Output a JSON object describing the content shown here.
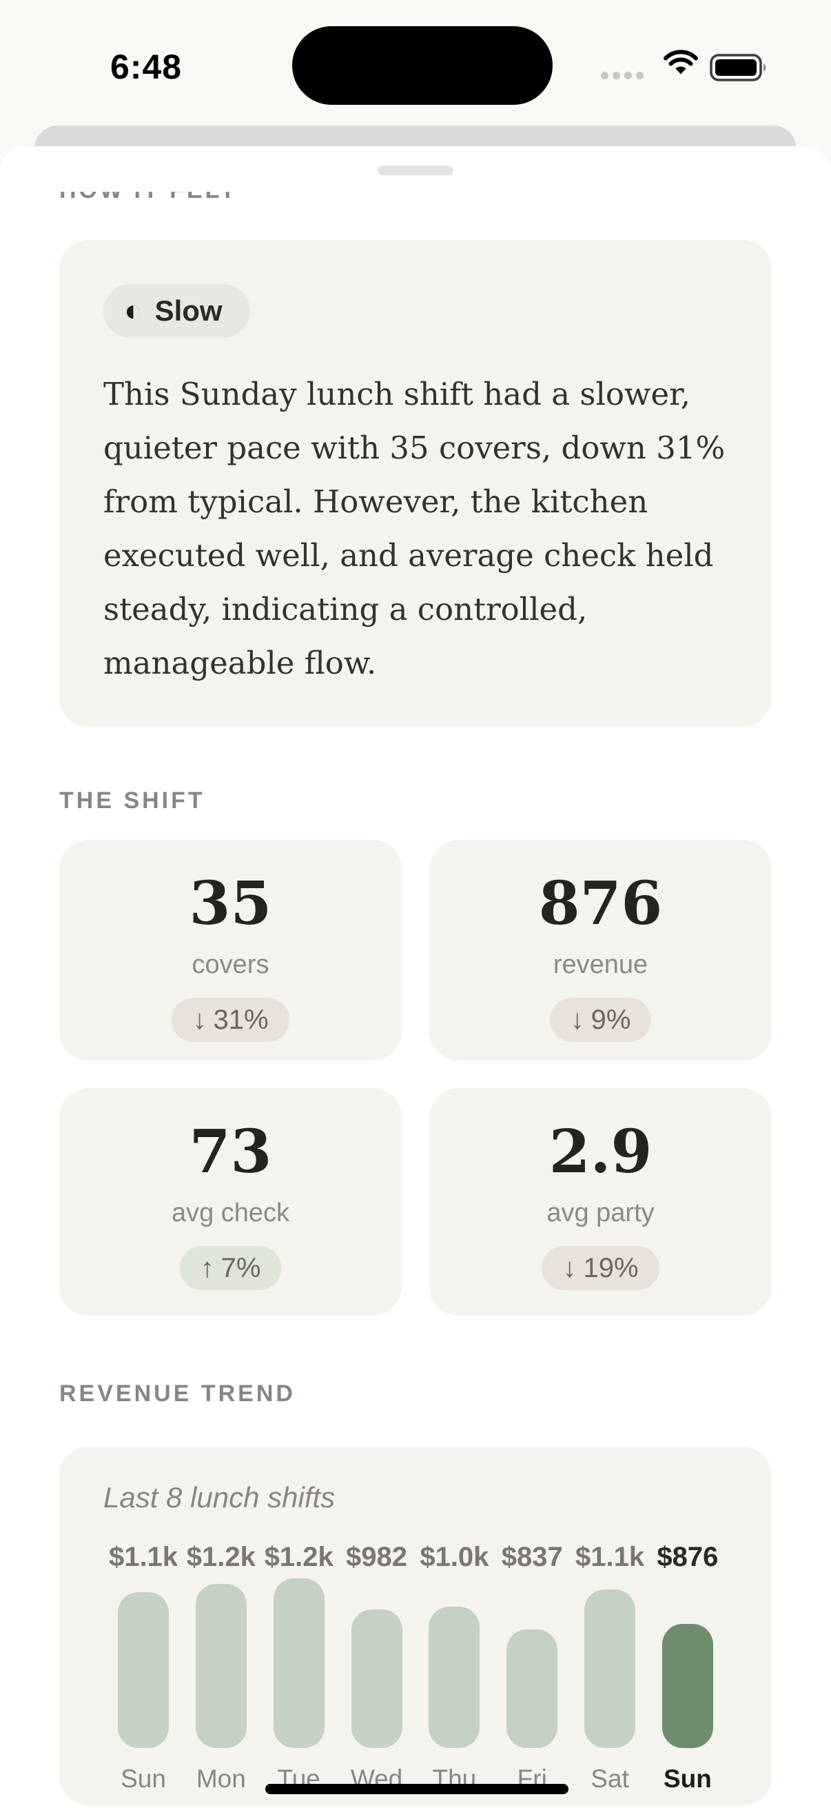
{
  "status_bar": {
    "time": "6:48",
    "cellular_icon": "cellular-signal-dots",
    "wifi_icon": "wifi",
    "battery_icon": "battery-full"
  },
  "sheet": {
    "cut_header": "HOW IT FELT",
    "summary": {
      "badge_icon": "◐",
      "badge_label": "Slow",
      "paragraph": "This Sunday lunch shift had a slower, quieter pace with 35 covers, down 31% from typical. However, the kitchen executed well, and average check held steady, indicating a controlled, manageable flow."
    },
    "shift": {
      "header": "THE SHIFT",
      "stats": [
        {
          "value": "35",
          "label": "covers",
          "arrow": "↓",
          "delta": "31%",
          "direction": "down"
        },
        {
          "value": "876",
          "label": "revenue",
          "arrow": "↓",
          "delta": "9%",
          "direction": "down"
        },
        {
          "value": "73",
          "label": "avg check",
          "arrow": "↑",
          "delta": "7%",
          "direction": "up"
        },
        {
          "value": "2.9",
          "label": "avg party",
          "arrow": "↓",
          "delta": "19%",
          "direction": "down"
        }
      ]
    },
    "trend": {
      "header": "REVENUE TREND",
      "subtitle": "Last 8 lunch shifts"
    }
  },
  "chart_data": {
    "type": "bar",
    "title": "Last 8 lunch shifts",
    "categories": [
      "Sun",
      "Mon",
      "Tue",
      "Wed",
      "Thu",
      "Fri",
      "Sat",
      "Sun"
    ],
    "values": [
      1100,
      1160,
      1200,
      982,
      1000,
      837,
      1120,
      876
    ],
    "value_labels": [
      "$1.1k",
      "$1.2k",
      "$1.2k",
      "$982",
      "$1.0k",
      "$837",
      "$1.1k",
      "$876"
    ],
    "highlight_index": 7,
    "ylim": [
      0,
      1200
    ],
    "grid": false,
    "legend": false,
    "bar_color": "#c6d1c5",
    "highlight_bar_color": "#6d8d6c"
  },
  "colors": {
    "page_bg": "#f9f8f5",
    "card_bg": "#f5f3ee",
    "badge_up_bg": "#e0e5da",
    "badge_down_bg": "#e8e1dc",
    "accent_green": "#6d8d6c",
    "bar_light": "#c6d1c5"
  }
}
